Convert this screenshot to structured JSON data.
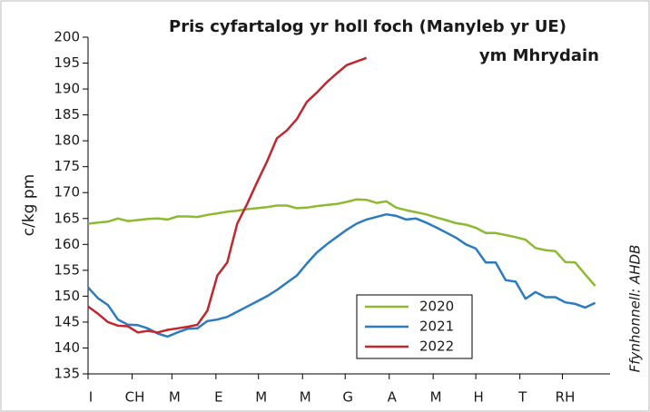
{
  "chart_data": {
    "type": "line",
    "title": [
      "Pris cyfartalog yr holl foch (Manyleb yr UE)",
      "ym Mhrydain"
    ],
    "y_label": "c/kg pm",
    "source": "Ffynhonnell: AHDB",
    "x": [
      0,
      1,
      2,
      3,
      4,
      5,
      6,
      7,
      8,
      9,
      10,
      11,
      12,
      13,
      14,
      15,
      16,
      17,
      18,
      19,
      20,
      21,
      22,
      23,
      24,
      25,
      26,
      27,
      28,
      29,
      30,
      31,
      32,
      33,
      34,
      35,
      36,
      37,
      38,
      39,
      40,
      41,
      42,
      43,
      44,
      45,
      46,
      47,
      48,
      49,
      50,
      51
    ],
    "xlim": [
      0,
      52.5
    ],
    "xticks": [
      {
        "value": 0,
        "label": "I"
      },
      {
        "value": 4.43,
        "label": "CH"
      },
      {
        "value": 8.43,
        "label": "M"
      },
      {
        "value": 12.86,
        "label": "E"
      },
      {
        "value": 17.14,
        "label": "M"
      },
      {
        "value": 21.57,
        "label": "M"
      },
      {
        "value": 25.86,
        "label": "G"
      },
      {
        "value": 30.29,
        "label": "A"
      },
      {
        "value": 34.71,
        "label": "M"
      },
      {
        "value": 39,
        "label": "H"
      },
      {
        "value": 43.43,
        "label": "T"
      },
      {
        "value": 47.71,
        "label": "RH"
      }
    ],
    "ylim": [
      135,
      200
    ],
    "yticks": [
      135,
      140,
      145,
      150,
      155,
      160,
      165,
      170,
      175,
      180,
      185,
      190,
      195,
      200
    ],
    "legend": "lower-center",
    "series": [
      {
        "name": "2020",
        "color": "#8dba30",
        "values": [
          164,
          164.2,
          164.4,
          165,
          164.5,
          164.7,
          164.9,
          165,
          164.8,
          165.4,
          165.4,
          165.3,
          165.7,
          166,
          166.3,
          166.5,
          166.8,
          167,
          167.2,
          167.5,
          167.5,
          167,
          167.1,
          167.4,
          167.6,
          167.8,
          168.2,
          168.7,
          168.6,
          168,
          168.3,
          167.1,
          166.6,
          166.2,
          165.8,
          165.2,
          164.7,
          164.1,
          163.8,
          163.2,
          162.2,
          162.2,
          161.8,
          161.4,
          160.9,
          159.3,
          158.9,
          158.7,
          156.6,
          156.5,
          154.2,
          152
        ]
      },
      {
        "name": "2021",
        "color": "#2a7bc1",
        "values": [
          151.7,
          149.6,
          148.3,
          145.5,
          144.5,
          144.4,
          143.8,
          142.8,
          142.2,
          143,
          143.7,
          143.8,
          145.2,
          145.5,
          146,
          147,
          148,
          149,
          150,
          151.2,
          152.6,
          154,
          156.3,
          158.4,
          160,
          161.4,
          162.8,
          164,
          164.8,
          165.3,
          165.8,
          165.5,
          164.8,
          165,
          164.2,
          163.3,
          162.3,
          161.3,
          160,
          159.2,
          156.5,
          156.5,
          153.1,
          152.8,
          149.5,
          150.8,
          149.8,
          149.8,
          148.8,
          148.5,
          147.8,
          148.7
        ]
      },
      {
        "name": "2022",
        "color": "#c1272d",
        "values": [
          148,
          146.6,
          145,
          144.3,
          144.2,
          143,
          143.3,
          143,
          143.5,
          143.8,
          144.1,
          144.5,
          147.2,
          154,
          156.5,
          164,
          167.8,
          172,
          176,
          180.5,
          182,
          184.2,
          187.5,
          189.3,
          191.3,
          193,
          194.6,
          195.3,
          196,
          null,
          null,
          null,
          null,
          null,
          null,
          null,
          null,
          null,
          null,
          null,
          null,
          null,
          null,
          null,
          null,
          null,
          null,
          null,
          null,
          null,
          null,
          null
        ]
      }
    ]
  }
}
